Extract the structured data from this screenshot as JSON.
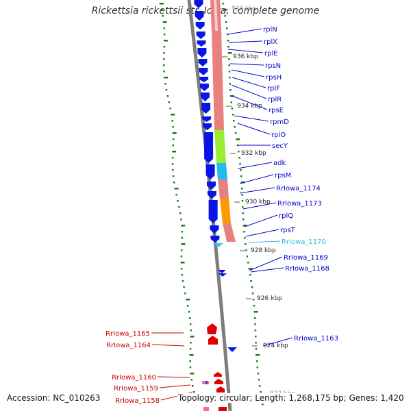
{
  "title": "Rickettsia rickettsii str. Iowa, complete genome",
  "footer": {
    "accession": "Accession: NC_010263",
    "topology": "Topology: circular; Length: 1,268,175 bp; Genes: 1,420"
  },
  "colors": {
    "forward_gene": "#0a14e6",
    "reverse_gene": "#e00000",
    "rna_gene": "#33ccee",
    "pseudo_gene": "#ff3399",
    "cog_ribosomal": "#e88080",
    "cog_green": "#99ee33",
    "cog_cyan": "#22bbee",
    "cog_orange": "#ff9900",
    "backbone": "#808080",
    "gc_dots": "#1a7a1a"
  },
  "ticks": [
    {
      "label": "938 kbp"
    },
    {
      "label": "936 kbp"
    },
    {
      "label": "934 kbp"
    },
    {
      "label": "932 kbp"
    },
    {
      "label": "930 kbp"
    },
    {
      "label": "928 kbp"
    },
    {
      "label": "926 kbp"
    },
    {
      "label": "924 kbp"
    },
    {
      "label": "922 kbp"
    }
  ],
  "gene_labels_right": [
    {
      "name": "rplN",
      "color": "#0000cc"
    },
    {
      "name": "rplX",
      "color": "#0000cc"
    },
    {
      "name": "rplE",
      "color": "#0000cc"
    },
    {
      "name": "rpsN",
      "color": "#0000cc"
    },
    {
      "name": "rpsH",
      "color": "#0000cc"
    },
    {
      "name": "rplF",
      "color": "#0000cc"
    },
    {
      "name": "rplR",
      "color": "#0000cc"
    },
    {
      "name": "rpsE",
      "color": "#0000cc"
    },
    {
      "name": "rpmD",
      "color": "#0000cc"
    },
    {
      "name": "rplO",
      "color": "#0000cc"
    },
    {
      "name": "secY",
      "color": "#0000cc"
    },
    {
      "name": "adk",
      "color": "#0000cc"
    },
    {
      "name": "rpsM",
      "color": "#0000cc"
    },
    {
      "name": "RrIowa_1174",
      "color": "#0000cc"
    },
    {
      "name": "RrIowa_1173",
      "color": "#0000cc"
    },
    {
      "name": "rplQ",
      "color": "#0000cc"
    },
    {
      "name": "rpsT",
      "color": "#0000cc"
    },
    {
      "name": "RrIowa_1170",
      "color": "#33bbdd"
    },
    {
      "name": "RrIowa_1169",
      "color": "#0000cc"
    },
    {
      "name": "RrIowa_1168",
      "color": "#0000cc"
    },
    {
      "name": "RrIowa_1163",
      "color": "#0000cc"
    }
  ],
  "gene_labels_left": [
    {
      "name": "RrIowa_1165",
      "color": "#cc0000"
    },
    {
      "name": "RrIowa_1164",
      "color": "#cc0000"
    },
    {
      "name": "RrIowa_1160",
      "color": "#cc0000"
    },
    {
      "name": "RrIowa_1159",
      "color": "#cc0000"
    },
    {
      "name": "RrIowa_1158",
      "color": "#cc0000"
    }
  ]
}
